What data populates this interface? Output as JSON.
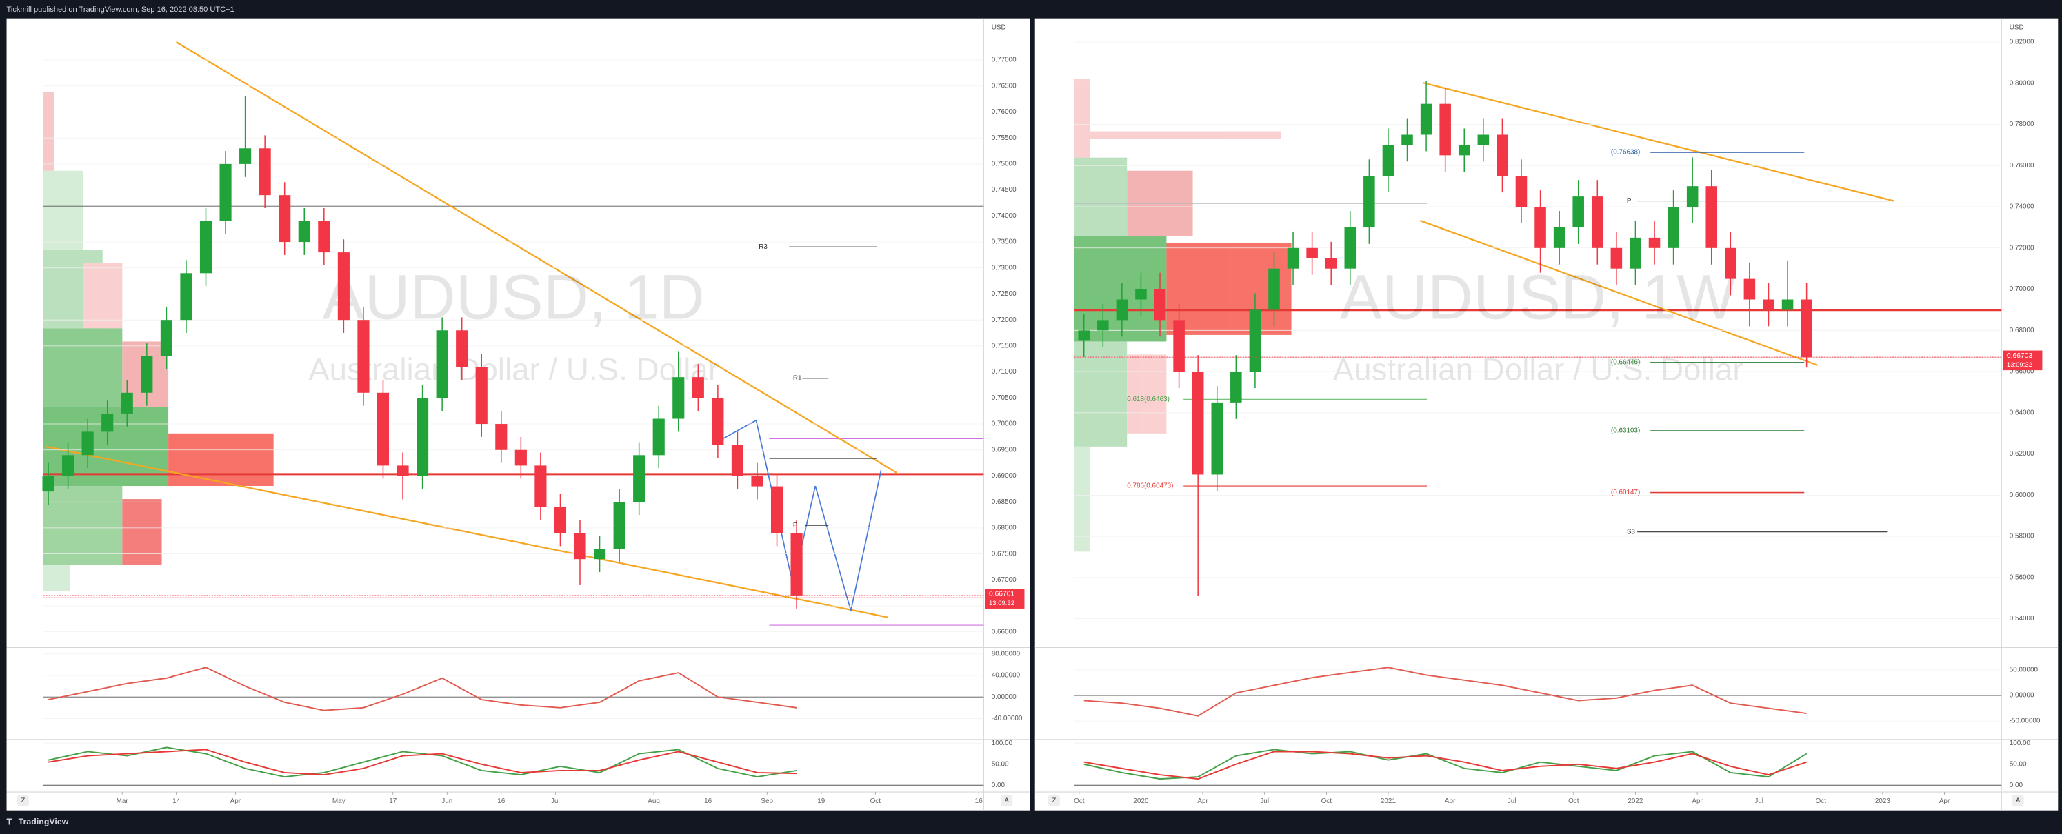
{
  "header": {
    "publisher": "Tickmill published on TradingView.com, Sep 16, 2022 08:50 UTC+1"
  },
  "footer": {
    "brand": "TradingView"
  },
  "chart_data": [
    {
      "type": "candlestick",
      "title": "AUDUSD, 1D",
      "subtitle": "Australian Dollar / U.S. Dollar",
      "y_axis_label": "USD",
      "up_color": "#22a33a",
      "down_color": "#f23645",
      "last_price": 0.66701,
      "countdown": "13:09:32",
      "annotations": [
        "R3",
        "R1",
        "P"
      ],
      "xlim": [
        -1,
        190
      ],
      "ylim": [
        0.657,
        0.778
      ],
      "xticks": [
        {
          "value": 15,
          "label": "Mar"
        },
        {
          "value": 26,
          "label": "14"
        },
        {
          "value": 38,
          "label": "Apr"
        },
        {
          "value": 59,
          "label": "May"
        },
        {
          "value": 70,
          "label": "17"
        },
        {
          "value": 81,
          "label": "Jun"
        },
        {
          "value": 92,
          "label": "16"
        },
        {
          "value": 103,
          "label": "Jul"
        },
        {
          "value": 123,
          "label": "Aug"
        },
        {
          "value": 134,
          "label": "16"
        },
        {
          "value": 146,
          "label": "Sep"
        },
        {
          "value": 157,
          "label": "19"
        },
        {
          "value": 168,
          "label": "Oct"
        },
        {
          "value": 189,
          "label": "16"
        }
      ],
      "yticks": [
        {
          "value": 0.66,
          "label": "0.66000"
        },
        {
          "value": 0.665,
          "label": "0.66500"
        },
        {
          "value": 0.67,
          "label": "0.67000"
        },
        {
          "value": 0.675,
          "label": "0.67500"
        },
        {
          "value": 0.68,
          "label": "0.68000"
        },
        {
          "value": 0.685,
          "label": "0.68500"
        },
        {
          "value": 0.69,
          "label": "0.69000"
        },
        {
          "value": 0.695,
          "label": "0.69500"
        },
        {
          "value": 0.7,
          "label": "0.70000"
        },
        {
          "value": 0.705,
          "label": "0.70500"
        },
        {
          "value": 0.71,
          "label": "0.71000"
        },
        {
          "value": 0.715,
          "label": "0.71500"
        },
        {
          "value": 0.72,
          "label": "0.72000"
        },
        {
          "value": 0.725,
          "label": "0.72500"
        },
        {
          "value": 0.73,
          "label": "0.73000"
        },
        {
          "value": 0.735,
          "label": "0.73500"
        },
        {
          "value": 0.74,
          "label": "0.74000"
        },
        {
          "value": 0.745,
          "label": "0.74500"
        },
        {
          "value": 0.75,
          "label": "0.75000"
        },
        {
          "value": 0.755,
          "label": "0.75500"
        },
        {
          "value": 0.76,
          "label": "0.76000"
        },
        {
          "value": 0.765,
          "label": "0.76500"
        },
        {
          "value": 0.77,
          "label": "0.77000"
        }
      ],
      "x": [
        0,
        4,
        8,
        12,
        16,
        20,
        24,
        28,
        32,
        36,
        40,
        44,
        48,
        52,
        56,
        60,
        64,
        68,
        72,
        76,
        80,
        84,
        88,
        92,
        96,
        100,
        104,
        108,
        112,
        116,
        120,
        124,
        128,
        132,
        136,
        140,
        144,
        148,
        152
      ],
      "open": [
        0.687,
        0.69,
        0.694,
        0.6985,
        0.702,
        0.706,
        0.713,
        0.72,
        0.729,
        0.739,
        0.75,
        0.753,
        0.744,
        0.735,
        0.739,
        0.733,
        0.72,
        0.706,
        0.692,
        0.69,
        0.705,
        0.718,
        0.711,
        0.7,
        0.695,
        0.692,
        0.684,
        0.679,
        0.674,
        0.676,
        0.685,
        0.694,
        0.701,
        0.709,
        0.705,
        0.696,
        0.69,
        0.688,
        0.679
      ],
      "high": [
        0.6925,
        0.6965,
        0.701,
        0.7045,
        0.7085,
        0.7155,
        0.7225,
        0.7315,
        0.7415,
        0.7525,
        0.763,
        0.7555,
        0.7465,
        0.7415,
        0.7415,
        0.7355,
        0.7225,
        0.7085,
        0.6945,
        0.7075,
        0.7205,
        0.7205,
        0.7135,
        0.7025,
        0.6975,
        0.6945,
        0.6865,
        0.6815,
        0.6785,
        0.6875,
        0.6965,
        0.7035,
        0.714,
        0.7115,
        0.7075,
        0.6985,
        0.6925,
        0.6905,
        0.6815
      ],
      "low": [
        0.6845,
        0.6875,
        0.6915,
        0.696,
        0.6995,
        0.7035,
        0.7105,
        0.7175,
        0.7265,
        0.7365,
        0.7475,
        0.7415,
        0.7325,
        0.7325,
        0.7305,
        0.7175,
        0.7035,
        0.6895,
        0.6855,
        0.6875,
        0.7025,
        0.7085,
        0.6975,
        0.6925,
        0.6895,
        0.6815,
        0.6765,
        0.669,
        0.6715,
        0.6735,
        0.6825,
        0.6915,
        0.6985,
        0.7025,
        0.6935,
        0.6875,
        0.6855,
        0.6765,
        0.6645
      ],
      "close": [
        0.69,
        0.694,
        0.6985,
        0.702,
        0.706,
        0.713,
        0.72,
        0.729,
        0.739,
        0.75,
        0.753,
        0.744,
        0.735,
        0.739,
        0.733,
        0.72,
        0.706,
        0.692,
        0.69,
        0.705,
        0.718,
        0.711,
        0.7,
        0.695,
        0.692,
        0.684,
        0.679,
        0.674,
        0.676,
        0.685,
        0.694,
        0.701,
        0.709,
        0.705,
        0.696,
        0.69,
        0.688,
        0.679,
        0.66701
      ]
    },
    {
      "type": "line",
      "xlim": [
        -1,
        190
      ],
      "ylim": [
        -79,
        92
      ],
      "yticks": [
        {
          "value": 80,
          "label": "80.00000"
        },
        {
          "value": 40,
          "label": "40.00000"
        },
        {
          "value": 0,
          "label": "0.00000"
        },
        {
          "value": -40,
          "label": "-40.00000"
        }
      ],
      "x": [
        0,
        8,
        16,
        24,
        32,
        40,
        48,
        56,
        64,
        72,
        80,
        88,
        96,
        104,
        112,
        120,
        128,
        136,
        144,
        152
      ],
      "series": [
        {
          "color": "#e05a4f",
          "values": [
            -5,
            10,
            25,
            35,
            55,
            20,
            -10,
            -25,
            -20,
            5,
            35,
            -5,
            -15,
            -20,
            -10,
            30,
            45,
            0,
            -10,
            -20
          ]
        }
      ]
    },
    {
      "type": "line",
      "xlim": [
        -1,
        190
      ],
      "ylim": [
        -16,
        109
      ],
      "yticks": [
        {
          "value": 100,
          "label": "100.00"
        },
        {
          "value": 50,
          "label": "50.00"
        },
        {
          "value": 0,
          "label": "0.00"
        }
      ],
      "x": [
        0,
        8,
        16,
        24,
        32,
        40,
        48,
        56,
        64,
        72,
        80,
        88,
        96,
        104,
        112,
        120,
        128,
        136,
        144,
        152
      ],
      "series": [
        {
          "color": "#43a047",
          "values": [
            60,
            80,
            70,
            90,
            75,
            40,
            20,
            30,
            55,
            80,
            70,
            35,
            25,
            45,
            30,
            75,
            85,
            40,
            20,
            35
          ]
        },
        {
          "color": "#e53935",
          "values": [
            55,
            70,
            75,
            80,
            85,
            55,
            30,
            25,
            40,
            70,
            75,
            50,
            30,
            35,
            35,
            60,
            80,
            55,
            30,
            28
          ]
        }
      ]
    },
    {
      "type": "candlestick",
      "title": "AUDUSD, 1W",
      "subtitle": "Australian Dollar / U.S. Dollar",
      "y_axis_label": "USD",
      "up_color": "#22a33a",
      "down_color": "#f23645",
      "last_price": 0.66703,
      "countdown": "13:09:32",
      "annotations": [
        "(0.76638)",
        "P",
        "(0.66446)",
        "(0.63103)",
        "(0.60147)",
        "S3",
        "0.618(0.6463)",
        "0.786(0.60473)"
      ],
      "xlim": [
        0,
        195
      ],
      "ylim": [
        0.526,
        0.8315
      ],
      "xticks": [
        {
          "value": 1,
          "label": "Oct"
        },
        {
          "value": 14,
          "label": "2020"
        },
        {
          "value": 27,
          "label": "Apr"
        },
        {
          "value": 40,
          "label": "Jul"
        },
        {
          "value": 53,
          "label": "Oct"
        },
        {
          "value": 66,
          "label": "2021"
        },
        {
          "value": 79,
          "label": "Apr"
        },
        {
          "value": 92,
          "label": "Jul"
        },
        {
          "value": 105,
          "label": "Oct"
        },
        {
          "value": 118,
          "label": "2022"
        },
        {
          "value": 131,
          "label": "Apr"
        },
        {
          "value": 144,
          "label": "Jul"
        },
        {
          "value": 157,
          "label": "Oct"
        },
        {
          "value": 170,
          "label": "2023"
        },
        {
          "value": 183,
          "label": "Apr"
        }
      ],
      "yticks": [
        {
          "value": 0.54,
          "label": "0.54000"
        },
        {
          "value": 0.56,
          "label": "0.56000"
        },
        {
          "value": 0.58,
          "label": "0.58000"
        },
        {
          "value": 0.6,
          "label": "0.60000"
        },
        {
          "value": 0.62,
          "label": "0.62000"
        },
        {
          "value": 0.64,
          "label": "0.64000"
        },
        {
          "value": 0.66,
          "label": "0.66000"
        },
        {
          "value": 0.68,
          "label": "0.68000"
        },
        {
          "value": 0.7,
          "label": "0.70000"
        },
        {
          "value": 0.72,
          "label": "0.72000"
        },
        {
          "value": 0.74,
          "label": "0.74000"
        },
        {
          "value": 0.76,
          "label": "0.76000"
        },
        {
          "value": 0.78,
          "label": "0.78000"
        },
        {
          "value": 0.8,
          "label": "0.80000"
        },
        {
          "value": 0.82,
          "label": "0.82000"
        }
      ],
      "x": [
        2,
        6,
        10,
        14,
        18,
        22,
        26,
        30,
        34,
        38,
        42,
        46,
        50,
        54,
        58,
        62,
        66,
        70,
        74,
        78,
        82,
        86,
        90,
        94,
        98,
        102,
        106,
        110,
        114,
        118,
        122,
        126,
        130,
        134,
        138,
        142,
        146,
        150,
        154
      ],
      "open": [
        0.675,
        0.68,
        0.685,
        0.695,
        0.7,
        0.685,
        0.66,
        0.61,
        0.645,
        0.66,
        0.69,
        0.71,
        0.72,
        0.715,
        0.71,
        0.73,
        0.755,
        0.77,
        0.775,
        0.79,
        0.765,
        0.77,
        0.775,
        0.755,
        0.74,
        0.72,
        0.73,
        0.745,
        0.72,
        0.71,
        0.725,
        0.72,
        0.74,
        0.75,
        0.72,
        0.705,
        0.695,
        0.69,
        0.695
      ],
      "high": [
        0.688,
        0.693,
        0.703,
        0.708,
        0.708,
        0.693,
        0.668,
        0.653,
        0.668,
        0.698,
        0.718,
        0.728,
        0.728,
        0.723,
        0.738,
        0.763,
        0.778,
        0.783,
        0.801,
        0.798,
        0.778,
        0.783,
        0.783,
        0.763,
        0.748,
        0.738,
        0.753,
        0.753,
        0.728,
        0.733,
        0.733,
        0.748,
        0.764,
        0.758,
        0.728,
        0.713,
        0.703,
        0.714,
        0.703
      ],
      "low": [
        0.667,
        0.672,
        0.677,
        0.687,
        0.677,
        0.652,
        0.551,
        0.602,
        0.637,
        0.652,
        0.682,
        0.702,
        0.707,
        0.702,
        0.702,
        0.722,
        0.747,
        0.762,
        0.767,
        0.757,
        0.757,
        0.762,
        0.747,
        0.732,
        0.708,
        0.712,
        0.722,
        0.712,
        0.702,
        0.702,
        0.712,
        0.712,
        0.732,
        0.712,
        0.697,
        0.682,
        0.682,
        0.682,
        0.662
      ],
      "close": [
        0.68,
        0.685,
        0.695,
        0.7,
        0.685,
        0.66,
        0.61,
        0.645,
        0.66,
        0.69,
        0.71,
        0.72,
        0.715,
        0.71,
        0.73,
        0.755,
        0.77,
        0.775,
        0.79,
        0.765,
        0.77,
        0.775,
        0.755,
        0.74,
        0.72,
        0.73,
        0.745,
        0.72,
        0.71,
        0.725,
        0.72,
        0.74,
        0.75,
        0.72,
        0.705,
        0.695,
        0.69,
        0.695,
        0.66703
      ]
    },
    {
      "type": "line",
      "xlim": [
        0,
        195
      ],
      "ylim": [
        -86,
        94
      ],
      "yticks": [
        {
          "value": 50,
          "label": "50.00000"
        },
        {
          "value": 0,
          "label": "0.00000"
        },
        {
          "value": -50,
          "label": "-50.00000"
        }
      ],
      "x": [
        2,
        10,
        18,
        26,
        34,
        42,
        50,
        58,
        66,
        74,
        82,
        90,
        98,
        106,
        114,
        122,
        130,
        138,
        146,
        154
      ],
      "series": [
        {
          "color": "#e05a4f",
          "values": [
            -10,
            -15,
            -25,
            -40,
            5,
            20,
            35,
            45,
            55,
            40,
            30,
            20,
            5,
            -10,
            -5,
            10,
            20,
            -15,
            -25,
            -35
          ]
        }
      ]
    },
    {
      "type": "line",
      "xlim": [
        0,
        195
      ],
      "ylim": [
        -16,
        109
      ],
      "yticks": [
        {
          "value": 100,
          "label": "100.00"
        },
        {
          "value": 50,
          "label": "50.00"
        },
        {
          "value": 0,
          "label": "0.00"
        }
      ],
      "x": [
        2,
        10,
        18,
        26,
        34,
        42,
        50,
        58,
        66,
        74,
        82,
        90,
        98,
        106,
        114,
        122,
        130,
        138,
        146,
        154
      ],
      "series": [
        {
          "color": "#43a047",
          "values": [
            50,
            30,
            15,
            20,
            70,
            85,
            75,
            80,
            60,
            75,
            40,
            30,
            55,
            45,
            35,
            70,
            80,
            30,
            20,
            75
          ]
        },
        {
          "color": "#e53935",
          "values": [
            55,
            40,
            25,
            15,
            50,
            80,
            80,
            75,
            65,
            70,
            55,
            35,
            45,
            50,
            40,
            55,
            75,
            45,
            25,
            55
          ]
        }
      ]
    }
  ]
}
